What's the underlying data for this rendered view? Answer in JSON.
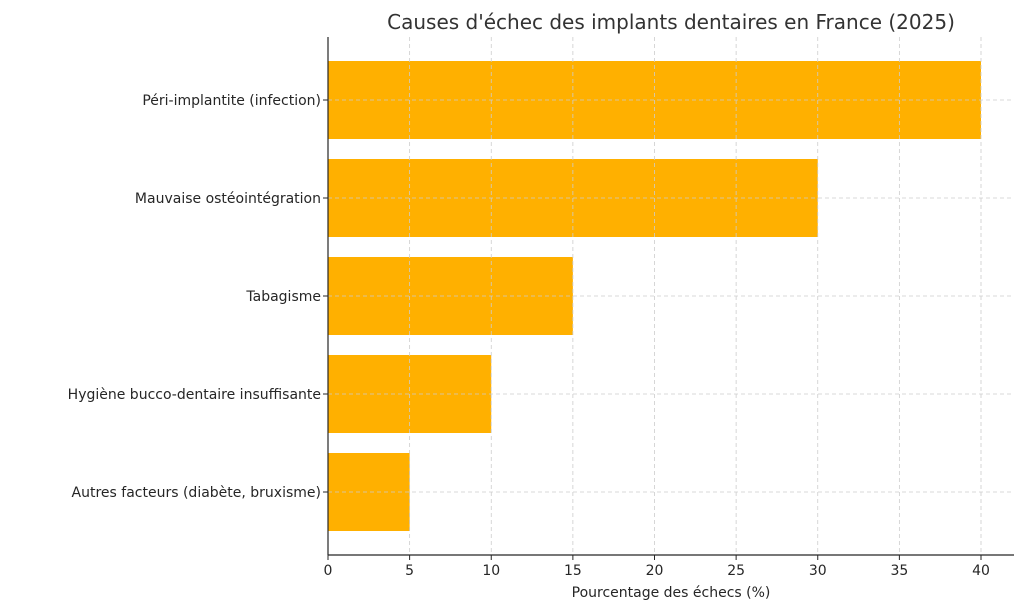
{
  "chart_data": {
    "type": "bar",
    "orientation": "horizontal",
    "title": "Causes d'échec des implants dentaires en France (2025)",
    "xlabel": "Pourcentage des échecs (%)",
    "ylabel": "",
    "categories": [
      "Péri-implantite (infection)",
      "Mauvaise ostéointégration",
      "Tabagisme",
      "Hygiène bucco-dentaire insuffisante",
      "Autres facteurs (diabète, bruxisme)"
    ],
    "values": [
      40,
      30,
      15,
      10,
      5
    ],
    "xlim": [
      0,
      42
    ],
    "xticks": [
      0,
      5,
      10,
      15,
      20,
      25,
      30,
      35,
      40
    ],
    "grid": true,
    "grid_style": "dashed",
    "legend": null,
    "bar_color": "#FFB000"
  },
  "colors": {
    "bar": "#FFB000",
    "grid": "#cccccc",
    "axis": "#262626",
    "title": "#333333"
  }
}
